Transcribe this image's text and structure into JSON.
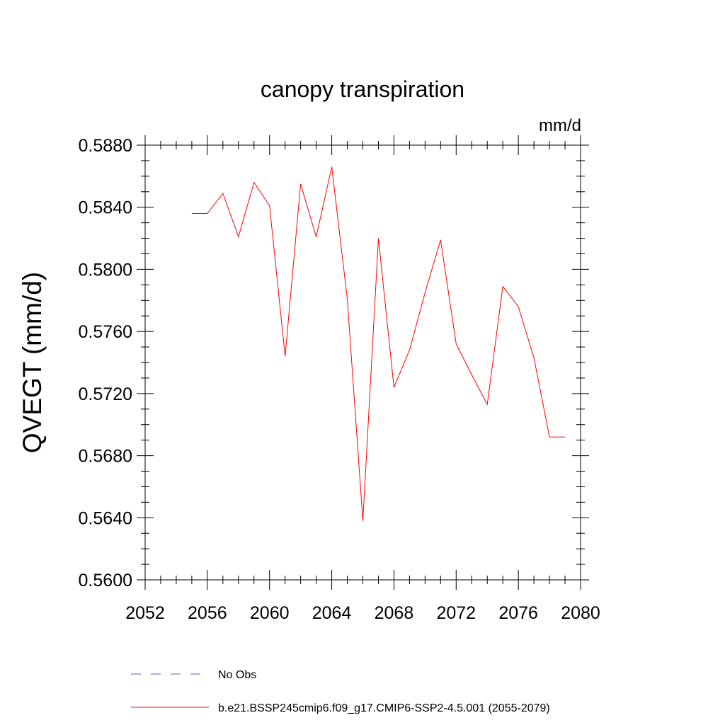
{
  "chart_data": {
    "type": "line",
    "title": "canopy transpiration",
    "units": "mm/d",
    "ylabel": "QVEGT  (mm/d)",
    "xlabel": "",
    "xlim": [
      2052,
      2080
    ],
    "ylim": [
      0.56,
      0.588
    ],
    "xticks": [
      2052,
      2056,
      2060,
      2064,
      2068,
      2072,
      2076,
      2080
    ],
    "xtick_labels": [
      "2052",
      "2056",
      "2060",
      "2064",
      "2068",
      "2072",
      "2076",
      "2080"
    ],
    "yticks": [
      0.56,
      0.564,
      0.568,
      0.572,
      0.576,
      0.58,
      0.584,
      0.588
    ],
    "ytick_labels": [
      "0.5600",
      "0.5640",
      "0.5680",
      "0.5720",
      "0.5760",
      "0.5800",
      "0.5840",
      "0.5880"
    ],
    "grid": false,
    "legend_position": "bottom",
    "series": [
      {
        "name": "b.e21.BSSP245cmip6.f09_g17.CMIP6-SSP2-4.5.001 (2055-2079)",
        "color": "#ff0000",
        "style": "solid",
        "x": [
          2055,
          2056,
          2057,
          2058,
          2059,
          2060,
          2061,
          2062,
          2063,
          2064,
          2065,
          2066,
          2067,
          2068,
          2069,
          2070,
          2071,
          2072,
          2073,
          2074,
          2075,
          2076,
          2077,
          2078,
          2079
        ],
        "y": [
          0.5836,
          0.5836,
          0.5849,
          0.5821,
          0.5856,
          0.5841,
          0.5744,
          0.5855,
          0.5821,
          0.5866,
          0.5781,
          0.5638,
          0.582,
          0.5724,
          0.5748,
          0.5785,
          0.5819,
          0.5752,
          0.5732,
          0.5713,
          0.5789,
          0.5776,
          0.5743,
          0.5692,
          0.5692
        ]
      }
    ],
    "legend": [
      {
        "label": "No Obs",
        "color": "#6a5acd",
        "style": "dashed"
      },
      {
        "label": "b.e21.BSSP245cmip6.f09_g17.CMIP6-SSP2-4.5.001 (2055-2079)",
        "color": "#ff0000",
        "style": "solid"
      }
    ]
  }
}
